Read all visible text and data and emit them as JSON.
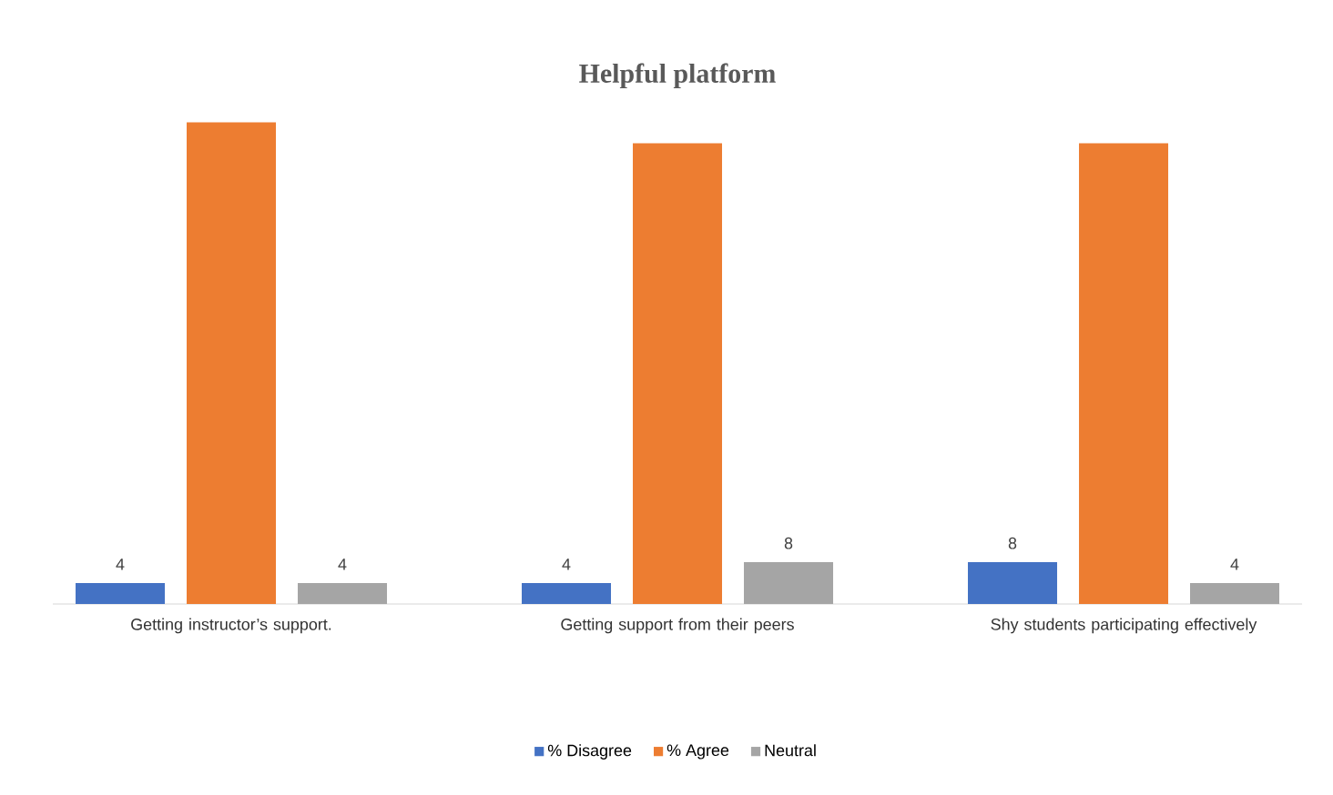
{
  "chart_data": {
    "type": "bar",
    "title": "Helpful platform",
    "categories": [
      "Getting instructor’s support.",
      "Getting support from their peers",
      "Shy students participating effectively"
    ],
    "series": [
      {
        "name": "% Disagree",
        "color": "#4472c4",
        "values": [
          4,
          4,
          8
        ],
        "value_labels": [
          "4",
          "4",
          "8"
        ]
      },
      {
        "name": "% Agree",
        "color": "#ed7d31",
        "values": [
          92,
          88,
          88
        ]
      },
      {
        "name": "Neutral",
        "color": "#a5a5a5",
        "values": [
          4,
          8,
          4
        ],
        "value_labels": [
          "4",
          "8",
          "4"
        ]
      }
    ],
    "legend": "bottom"
  }
}
